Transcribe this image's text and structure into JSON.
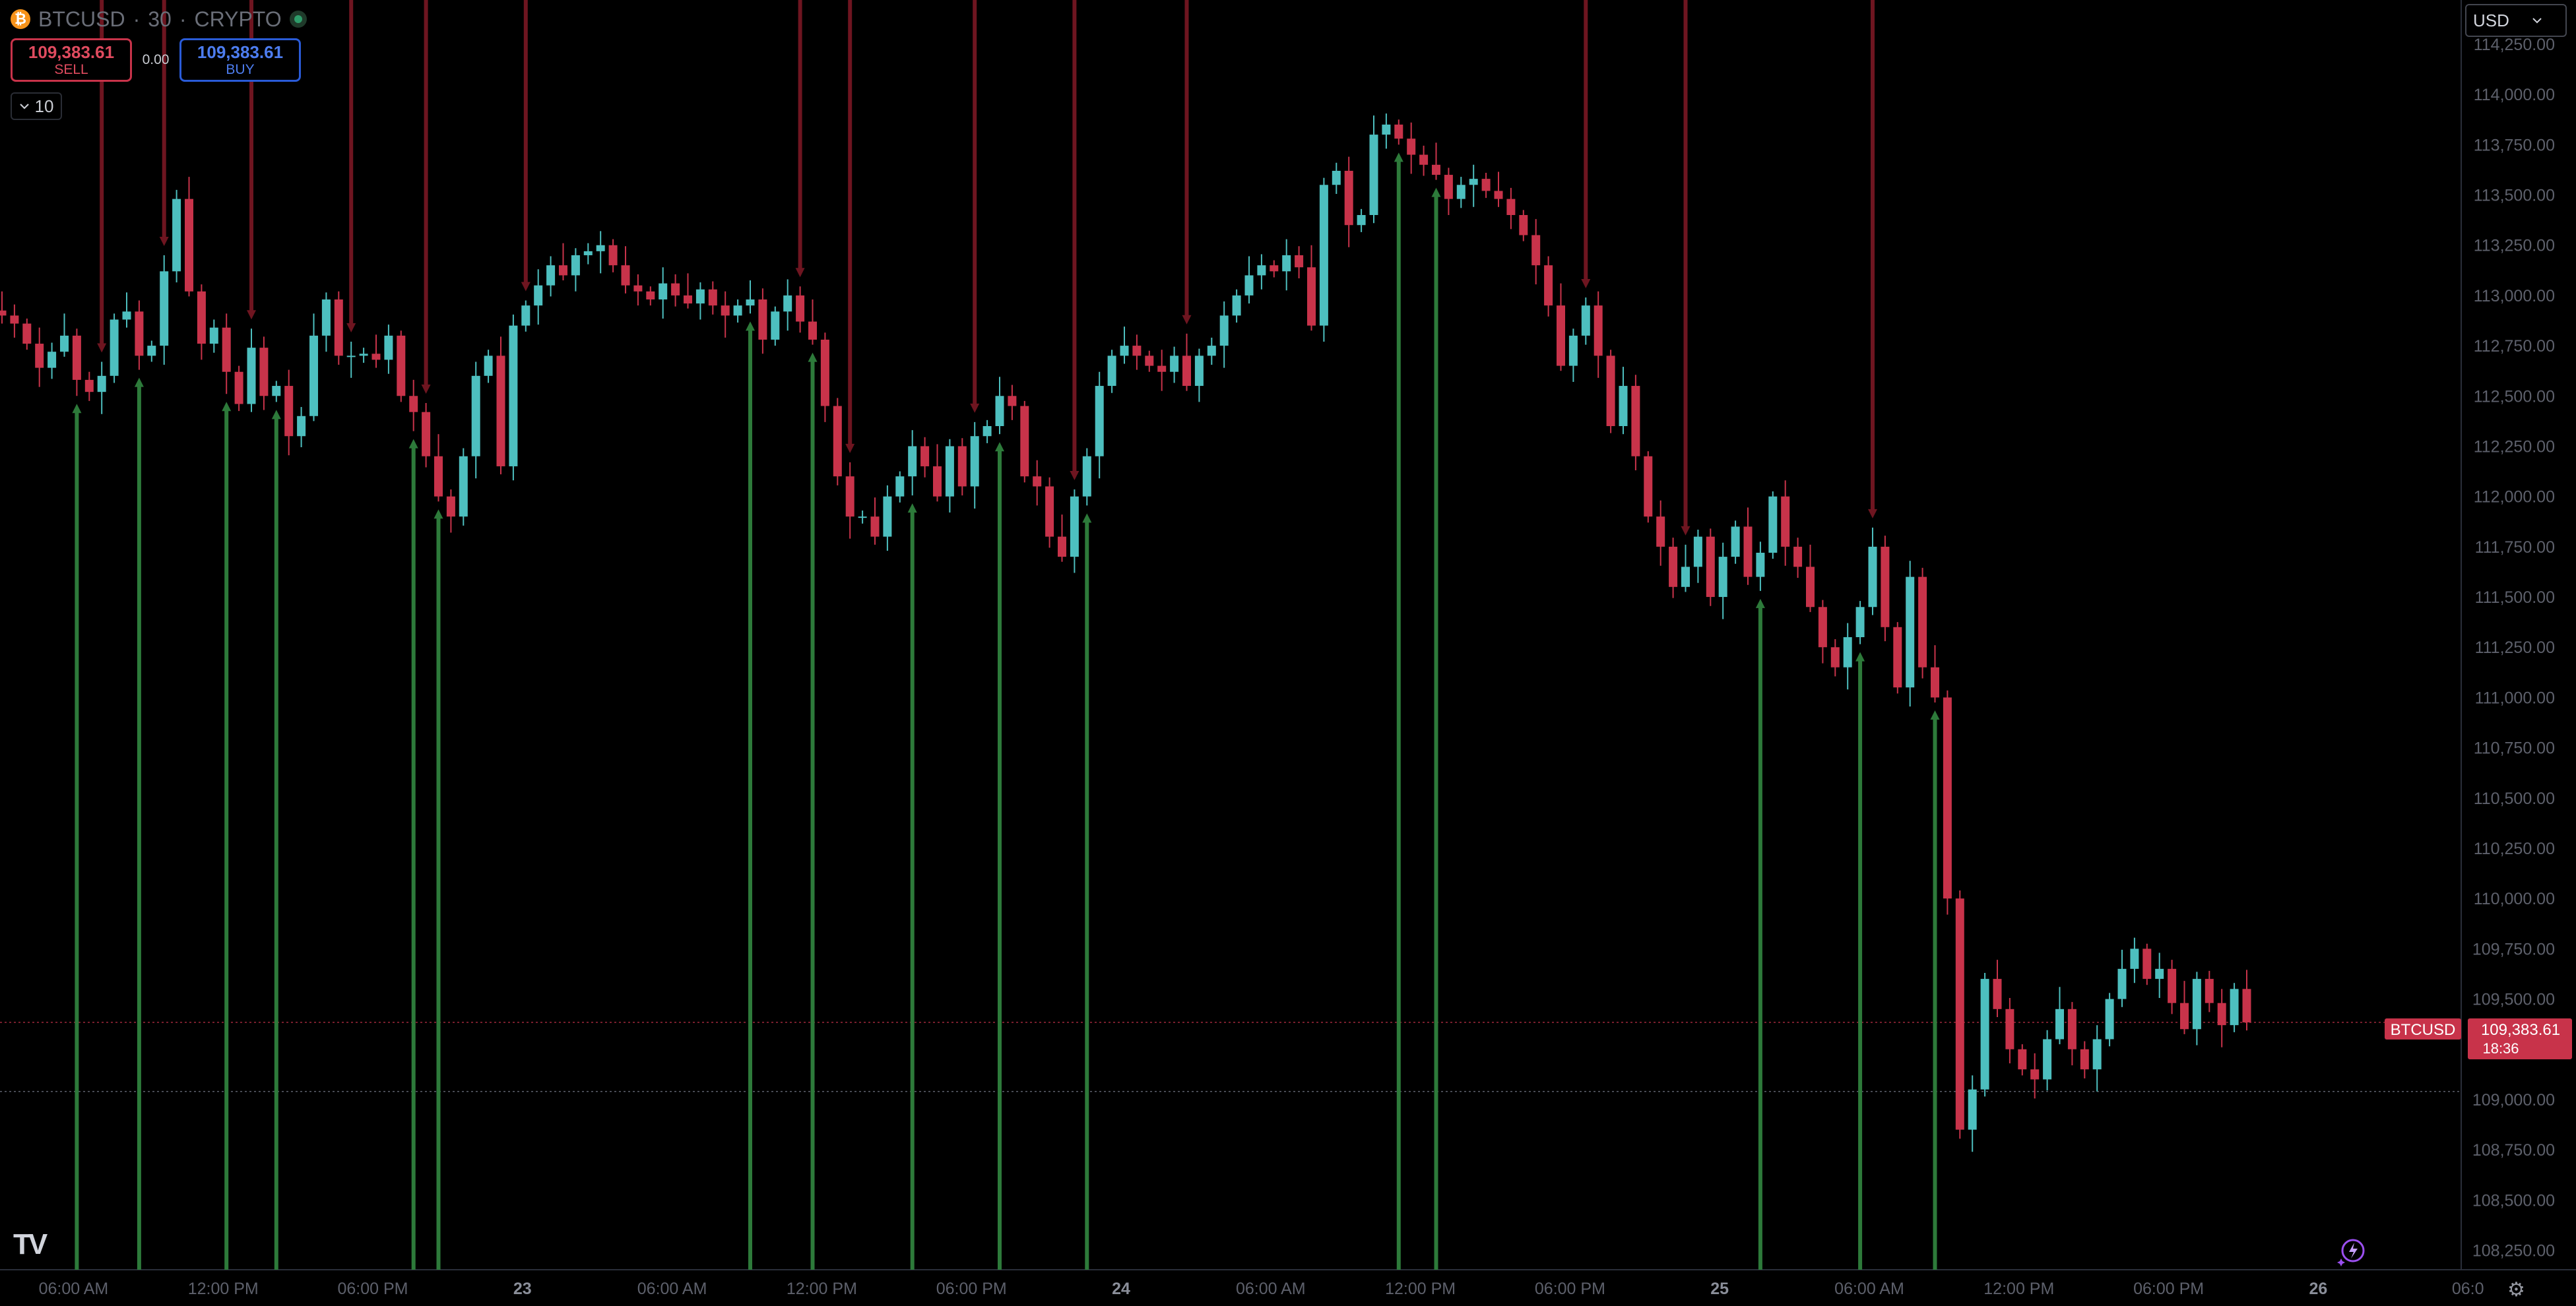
{
  "header": {
    "symbol": "BTCUSD",
    "interval": "30",
    "exchange": "CRYPTO",
    "separator": "·",
    "icon": "bitcoin-icon"
  },
  "trade": {
    "sell_price": "109,383.61",
    "sell_label": "SELL",
    "buy_price": "109,383.61",
    "buy_label": "BUY",
    "spread": "0.00"
  },
  "indicator": {
    "toggle": "10"
  },
  "currency": {
    "selected": "USD"
  },
  "price_tag": {
    "symbol": "BTCUSD",
    "price": "109,383.61",
    "countdown": "18:36"
  },
  "colors": {
    "background": "#000000",
    "up": "#4dbfbf",
    "down": "#c8334a",
    "up_marker": "#2d7a3a",
    "down_marker": "#6e1520",
    "price_line": "#c8334a"
  },
  "chart_data": {
    "type": "candlestick",
    "ylim": [
      108150,
      114450
    ],
    "y_ticks": [
      108250,
      108500,
      108750,
      109000,
      109250,
      109500,
      109750,
      110000,
      110250,
      110500,
      110750,
      111000,
      111250,
      111500,
      111750,
      112000,
      112250,
      112500,
      112750,
      113000,
      113250,
      113500,
      113750,
      114000,
      114250
    ],
    "y_tick_labels": [
      "108,250.00",
      "108,500.00",
      "108,750.00",
      "109,000.00",
      "109,250.00",
      "109,500.00",
      "109,750.00",
      "110,000.00",
      "110,250.00",
      "110,500.00",
      "110,750.00",
      "111,000.00",
      "111,250.00",
      "111,500.00",
      "111,750.00",
      "112,000.00",
      "112,250.00",
      "112,500.00",
      "112,750.00",
      "113,000.00",
      "113,250.00",
      "113,500.00",
      "113,750.00",
      "114,000.00",
      "114,250.00"
    ],
    "x_tick_labels": [
      {
        "label": "06:00 AM",
        "bar": 6
      },
      {
        "label": "12:00 PM",
        "bar": 18
      },
      {
        "label": "06:00 PM",
        "bar": 30
      },
      {
        "label": "23",
        "bar": 42,
        "bold": true
      },
      {
        "label": "06:00 AM",
        "bar": 54
      },
      {
        "label": "12:00 PM",
        "bar": 66
      },
      {
        "label": "06:00 PM",
        "bar": 78
      },
      {
        "label": "24",
        "bar": 90,
        "bold": true
      },
      {
        "label": "06:00 AM",
        "bar": 102
      },
      {
        "label": "12:00 PM",
        "bar": 114
      },
      {
        "label": "06:00 PM",
        "bar": 126
      },
      {
        "label": "25",
        "bar": 138,
        "bold": true
      },
      {
        "label": "06:00 AM",
        "bar": 150
      },
      {
        "label": "12:00 PM",
        "bar": 162
      },
      {
        "label": "06:00 PM",
        "bar": 174
      },
      {
        "label": "26",
        "bar": 186,
        "bold": true
      },
      {
        "label": "06:0",
        "bar": 198
      }
    ],
    "last_price": 109383.61,
    "dotted_level": 109040,
    "closes": [
      112900,
      112860,
      112760,
      112640,
      112720,
      112800,
      112580,
      112520,
      112600,
      112880,
      112920,
      112700,
      112750,
      113120,
      113480,
      113020,
      112760,
      112840,
      112620,
      112460,
      112740,
      112500,
      112550,
      112300,
      112400,
      112800,
      112980,
      112700,
      112700,
      112710,
      112680,
      112800,
      112500,
      112420,
      112200,
      112000,
      111900,
      112200,
      112600,
      112700,
      112150,
      112850,
      112950,
      113050,
      113150,
      113100,
      113200,
      113220,
      113250,
      113150,
      113050,
      113020,
      112980,
      113060,
      113000,
      112960,
      113030,
      112950,
      112900,
      112950,
      112980,
      112780,
      112920,
      113000,
      112870,
      112780,
      112450,
      112100,
      111900,
      111900,
      111800,
      112000,
      112100,
      112250,
      112150,
      112000,
      112250,
      112050,
      112300,
      112350,
      112500,
      112450,
      112100,
      112050,
      111800,
      111700,
      112000,
      112200,
      112550,
      112700,
      112750,
      112700,
      112650,
      112620,
      112700,
      112550,
      112700,
      112750,
      112900,
      113000,
      113100,
      113150,
      113120,
      113200,
      113140,
      112850,
      113550,
      113620,
      113350,
      113400,
      113800,
      113850,
      113780,
      113700,
      113650,
      113600,
      113480,
      113550,
      113580,
      113520,
      113480,
      113400,
      113300,
      113150,
      112950,
      112650,
      112800,
      112950,
      112700,
      112350,
      112550,
      112200,
      111900,
      111750,
      111550,
      111650,
      111800,
      111500,
      111700,
      111850,
      111600,
      111720,
      112000,
      111750,
      111650,
      111450,
      111250,
      111150,
      111300,
      111450,
      111750,
      111350,
      111050,
      111600,
      111150,
      111000,
      110000,
      108850,
      109050,
      109600,
      109450,
      109250,
      109150,
      109100,
      109300,
      109450,
      109250,
      109150,
      109300,
      109500,
      109650,
      109750,
      109600,
      109650,
      109480,
      109350,
      109600,
      109480,
      109370,
      109550,
      109383.61
    ],
    "up_markers": [
      6,
      11,
      18,
      22,
      33,
      35,
      60,
      65,
      73,
      80,
      87,
      112,
      115,
      141,
      149,
      155
    ],
    "down_markers": [
      8,
      13,
      20,
      28,
      34,
      42,
      64,
      68,
      78,
      86,
      95,
      127,
      135,
      150
    ]
  }
}
